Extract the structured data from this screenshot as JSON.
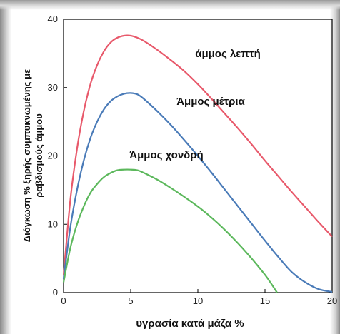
{
  "chart_data": {
    "type": "line",
    "title": "",
    "xlabel": "υγρασία  κατά  μάζα  %",
    "ylabel_lines": [
      "Διόγκωση % ξηρής συμπυκνωμένης με",
      "ραβδισμούς άμμου"
    ],
    "xlim": [
      0,
      20
    ],
    "ylim": [
      0,
      40
    ],
    "xticks": [
      0,
      5,
      10,
      15,
      20
    ],
    "yticks": [
      0,
      10,
      20,
      30,
      40
    ],
    "grid": false,
    "series": [
      {
        "name": "άμμος λεπτή",
        "color": "#e8596b",
        "x": [
          0,
          0.5,
          1,
          1.5,
          2,
          2.5,
          3,
          3.5,
          4,
          4.5,
          5,
          5.5,
          6,
          7,
          8,
          9,
          10,
          11,
          12,
          13,
          14,
          15,
          16,
          17,
          18,
          19,
          20
        ],
        "y": [
          2.5,
          13.5,
          21,
          26.5,
          30.5,
          33.3,
          35.3,
          36.6,
          37.3,
          37.6,
          37.6,
          37.3,
          36.8,
          35.5,
          34,
          32.4,
          30.5,
          28.4,
          26.2,
          24,
          21.7,
          19.3,
          17,
          14.7,
          12.5,
          10.3,
          8.2
        ]
      },
      {
        "name": "Άμμος μέτρια",
        "color": "#4a7bb8",
        "x": [
          0,
          0.5,
          1,
          1.5,
          2,
          2.5,
          3,
          3.5,
          4,
          4.5,
          5,
          5.5,
          6,
          7,
          8,
          9,
          10,
          11,
          12,
          13,
          14,
          15,
          16,
          17,
          18,
          19,
          20
        ],
        "y": [
          2,
          9.5,
          15,
          19.3,
          22.6,
          25,
          26.8,
          28,
          28.7,
          29.1,
          29.2,
          29,
          28.3,
          26.5,
          24.5,
          22.3,
          20,
          17.6,
          15.1,
          12.6,
          10.1,
          7.6,
          5.2,
          3,
          1.5,
          0.5,
          0.1
        ]
      },
      {
        "name": "Άμμος χονδρή",
        "color": "#5cb85c",
        "x": [
          0,
          0.5,
          1,
          1.5,
          2,
          2.5,
          3,
          3.5,
          4,
          4.5,
          5,
          5.5,
          6,
          7,
          8,
          9,
          10,
          11,
          12,
          13,
          14,
          15,
          15.5,
          15.9
        ],
        "y": [
          1.5,
          6.5,
          10,
          12.6,
          14.6,
          15.9,
          16.9,
          17.5,
          17.9,
          18,
          18,
          17.9,
          17.5,
          16.5,
          15.3,
          14,
          12.6,
          11,
          9.2,
          7.2,
          5,
          2.6,
          1.2,
          0
        ]
      }
    ],
    "annotations": [
      {
        "text": "άμμος λεπτή",
        "series": 0
      },
      {
        "text": "Άμμος μέτρια",
        "series": 1
      },
      {
        "text": "Άμμος χονδρή",
        "series": 2
      }
    ]
  }
}
